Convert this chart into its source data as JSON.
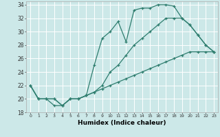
{
  "xlabel": "Humidex (Indice chaleur)",
  "xlim": [
    -0.5,
    23.5
  ],
  "ylim": [
    18,
    34.5
  ],
  "yticks": [
    18,
    20,
    22,
    24,
    26,
    28,
    30,
    32,
    34
  ],
  "xticks": [
    0,
    1,
    2,
    3,
    4,
    5,
    6,
    7,
    8,
    9,
    10,
    11,
    12,
    13,
    14,
    15,
    16,
    17,
    18,
    19,
    20,
    21,
    22,
    23
  ],
  "background_color": "#cce8e8",
  "grid_color": "#ffffff",
  "line_color": "#2e7d6e",
  "line1_x": [
    0,
    1,
    2,
    3,
    4,
    5,
    6,
    7,
    8,
    9,
    10,
    11,
    12,
    13,
    14,
    15,
    16,
    17,
    18,
    19,
    20,
    21,
    22,
    23
  ],
  "line1_y": [
    22,
    20,
    20,
    19,
    19,
    20,
    20,
    20.5,
    25,
    29,
    30,
    31.5,
    28.5,
    33.2,
    33.5,
    33.5,
    34,
    34,
    33.8,
    32,
    31,
    29.5,
    28,
    27
  ],
  "line2_x": [
    0,
    1,
    2,
    3,
    4,
    5,
    6,
    7,
    8,
    9,
    10,
    11,
    12,
    13,
    14,
    15,
    16,
    17,
    18,
    19,
    20,
    21,
    22,
    23
  ],
  "line2_y": [
    22,
    20,
    20,
    20,
    19,
    20,
    20,
    20.5,
    21,
    22,
    24,
    25,
    26.5,
    28,
    29,
    30,
    31,
    32,
    32,
    32,
    31,
    29.5,
    28,
    27
  ],
  "line3_x": [
    0,
    1,
    2,
    3,
    4,
    5,
    6,
    7,
    8,
    9,
    10,
    11,
    12,
    13,
    14,
    15,
    16,
    17,
    18,
    19,
    20,
    21,
    22,
    23
  ],
  "line3_y": [
    22,
    20,
    20,
    20,
    19,
    20,
    20,
    20.5,
    21,
    21.5,
    22,
    22.5,
    23,
    23.5,
    24,
    24.5,
    25,
    25.5,
    26,
    26.5,
    27,
    27,
    27,
    27
  ]
}
